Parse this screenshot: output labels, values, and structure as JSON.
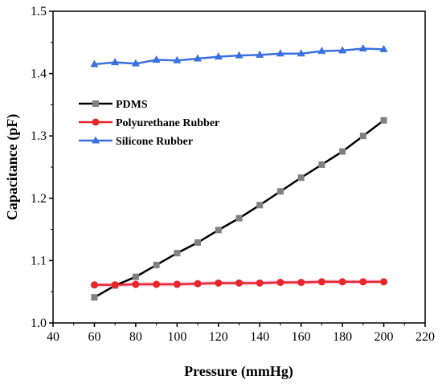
{
  "chart_data": {
    "type": "line",
    "title": "",
    "xlabel": "Pressure (mmHg)",
    "ylabel": "Capacitance (pF)",
    "xlim": [
      40,
      220
    ],
    "ylim": [
      1.0,
      1.5
    ],
    "x_ticks": [
      "40",
      "60",
      "80",
      "100",
      "120",
      "140",
      "160",
      "180",
      "200",
      "220"
    ],
    "y_ticks": [
      "1.0",
      "1.1",
      "1.2",
      "1.3",
      "1.4",
      "1.5"
    ],
    "x": [
      60,
      70,
      80,
      90,
      100,
      110,
      120,
      130,
      140,
      150,
      160,
      170,
      180,
      190,
      200
    ],
    "legend_position": "upper-left",
    "grid": false,
    "series": [
      {
        "name": "PDMS",
        "color": "#000000",
        "marker": "square",
        "marker_color": "#808080",
        "values": [
          1.041,
          1.06,
          1.074,
          1.093,
          1.112,
          1.129,
          1.149,
          1.168,
          1.189,
          1.211,
          1.233,
          1.254,
          1.275,
          1.3,
          1.325
        ]
      },
      {
        "name": "Polyurethane Rubber",
        "color": "#e8262a",
        "marker": "circle",
        "marker_color": "#e8262a",
        "band_color": "#f2c4e8",
        "values": [
          1.061,
          1.061,
          1.062,
          1.062,
          1.062,
          1.063,
          1.064,
          1.064,
          1.064,
          1.065,
          1.065,
          1.066,
          1.066,
          1.066,
          1.066
        ]
      },
      {
        "name": "Silicone Rubber",
        "color": "#3a6fe0",
        "marker": "triangle",
        "marker_color": "#3a6fe0",
        "values": [
          1.415,
          1.418,
          1.416,
          1.422,
          1.421,
          1.424,
          1.427,
          1.429,
          1.43,
          1.432,
          1.432,
          1.436,
          1.437,
          1.44,
          1.439
        ]
      }
    ]
  }
}
